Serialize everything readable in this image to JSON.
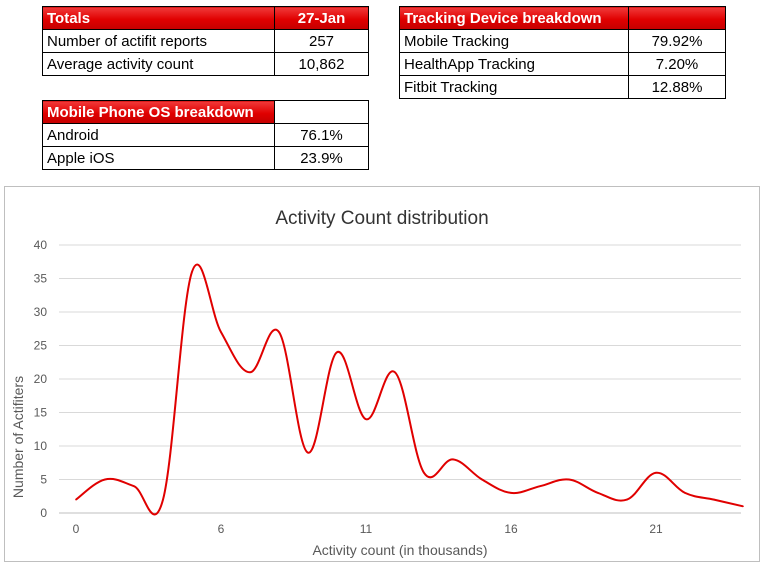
{
  "totals": {
    "header_label": "Totals",
    "header_date": "27-Jan",
    "rows": [
      {
        "label": "Number of actifit reports",
        "value": "257"
      },
      {
        "label": "Average activity count",
        "value": "10,862"
      }
    ]
  },
  "device_breakdown": {
    "header_label": "Tracking Device breakdown",
    "rows": [
      {
        "label": "Mobile Tracking",
        "value": "79.92%"
      },
      {
        "label": "HealthApp Tracking",
        "value": "7.20%"
      },
      {
        "label": "Fitbit Tracking",
        "value": "12.88%"
      }
    ]
  },
  "os_breakdown": {
    "header_label": "Mobile Phone OS breakdown",
    "rows": [
      {
        "label": "Android",
        "value": "76.1%"
      },
      {
        "label": "Apple iOS",
        "value": "23.9%"
      }
    ]
  },
  "colors": {
    "header_red": "#e00000",
    "line_red": "#e00000",
    "grid": "#d9d9d9"
  },
  "chart_data": {
    "type": "line",
    "title": "Activity Count distribution",
    "xlabel": "Activity count (in thousands)",
    "ylabel": "Number of Actifiters",
    "x_tick_labels": [
      "0",
      "6",
      "11",
      "16",
      "21"
    ],
    "x_tick_values": [
      0,
      5,
      10,
      15,
      20
    ],
    "y_tick_labels": [
      "0",
      "5",
      "10",
      "15",
      "20",
      "25",
      "30",
      "35",
      "40"
    ],
    "ylim": [
      0,
      40
    ],
    "xlim": [
      0,
      23
    ],
    "grid": true,
    "series": [
      {
        "smooth": true,
        "x": [
          0,
          1,
          2,
          3,
          4,
          5,
          6,
          7,
          8,
          9,
          10,
          11,
          12,
          13,
          14,
          15,
          16,
          17,
          18,
          19,
          20,
          21,
          22,
          23
        ],
        "y": [
          2,
          5,
          4,
          2,
          36,
          27,
          21,
          27,
          9,
          24,
          14,
          21,
          6,
          8,
          5,
          3,
          4,
          5,
          3,
          2,
          6,
          3,
          2,
          1
        ]
      }
    ]
  }
}
